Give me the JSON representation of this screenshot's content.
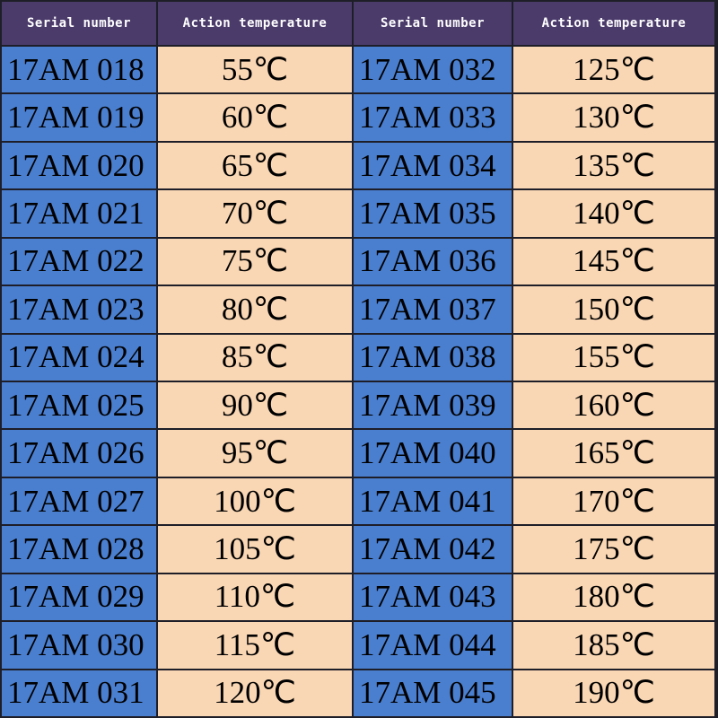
{
  "table": {
    "header": [
      "Serial number",
      "Action temperature",
      "Serial number",
      "Action temperature"
    ],
    "rows": [
      [
        "17AM 018",
        "55℃",
        "17AM 032",
        "125℃"
      ],
      [
        "17AM 019",
        "60℃",
        "17AM 033",
        "130℃"
      ],
      [
        "17AM 020",
        "65℃",
        "17AM 034",
        "135℃"
      ],
      [
        "17AM 021",
        "70℃",
        "17AM 035",
        "140℃"
      ],
      [
        "17AM 022",
        "75℃",
        "17AM 036",
        "145℃"
      ],
      [
        "17AM 023",
        "80℃",
        "17AM 037",
        "150℃"
      ],
      [
        "17AM 024",
        "85℃",
        "17AM 038",
        "155℃"
      ],
      [
        "17AM 025",
        "90℃",
        "17AM 039",
        "160℃"
      ],
      [
        "17AM 026",
        "95℃",
        "17AM 040",
        "165℃"
      ],
      [
        "17AM 027",
        "100℃",
        "17AM 041",
        "170℃"
      ],
      [
        "17AM 028",
        "105℃",
        "17AM 042",
        "175℃"
      ],
      [
        "17AM 029",
        "110℃",
        "17AM 043",
        "180℃"
      ],
      [
        "17AM 030",
        "115℃",
        "17AM 044",
        "185℃"
      ],
      [
        "17AM 031",
        "120℃",
        "17AM 045",
        "190℃"
      ]
    ]
  }
}
